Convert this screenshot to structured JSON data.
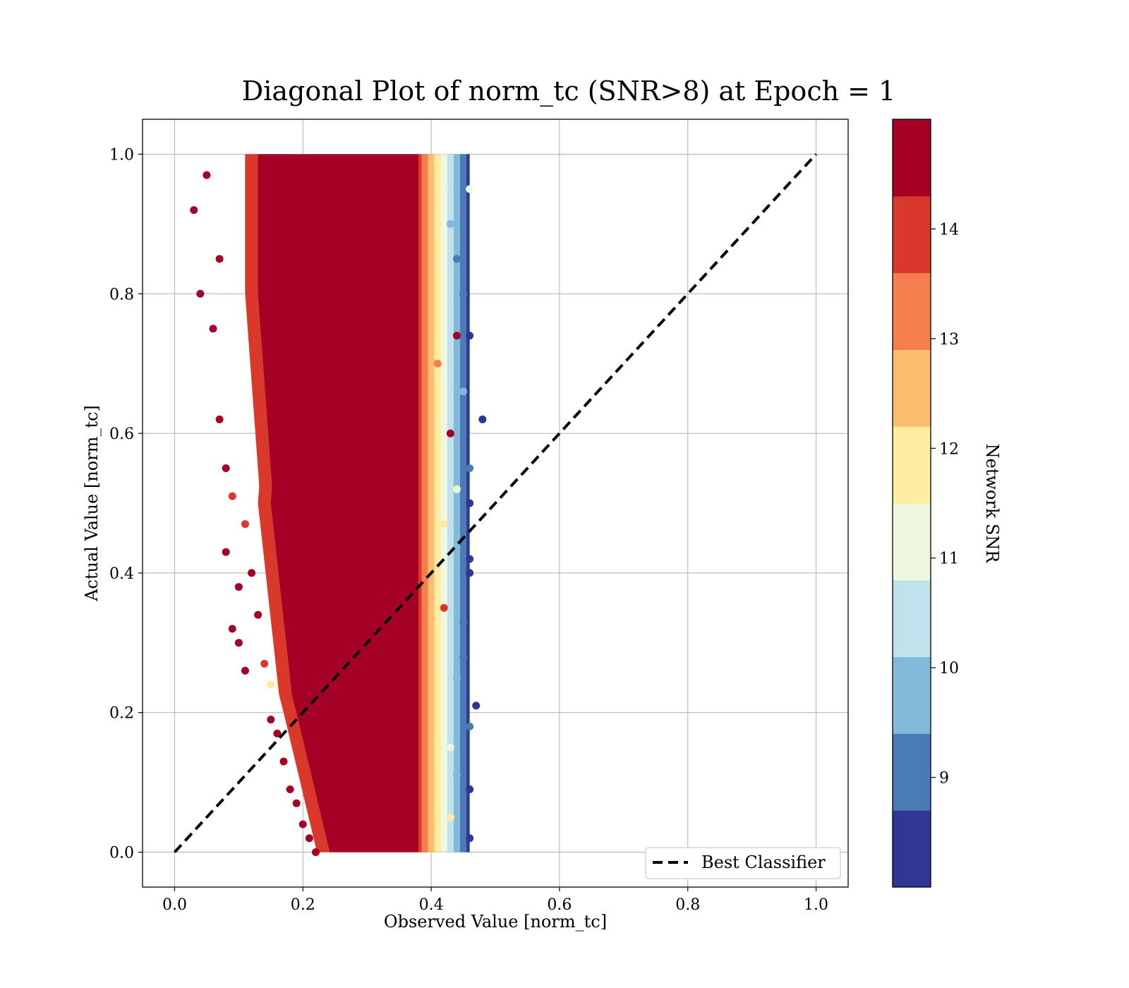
{
  "chart_data": {
    "type": "scatter",
    "title": "Diagonal Plot of norm_tc (SNR>8) at Epoch = 1",
    "xlabel": "Observed Value [norm_tc]",
    "ylabel": "Actual Value [norm_tc]",
    "xlim": [
      -0.05,
      1.05
    ],
    "ylim": [
      -0.05,
      1.05
    ],
    "xticks": [
      "0.0",
      "0.2",
      "0.4",
      "0.6",
      "0.8",
      "1.0"
    ],
    "yticks": [
      "0.0",
      "0.2",
      "0.4",
      "0.6",
      "0.8",
      "1.0"
    ],
    "grid": true,
    "legend": {
      "location": "lower right",
      "entries": [
        {
          "label": "Best Classifier",
          "style": "dashed",
          "color": "#000000"
        }
      ]
    },
    "reference_line": {
      "name": "Best Classifier",
      "x": [
        0.0,
        1.0
      ],
      "y": [
        0.0,
        1.0
      ]
    },
    "colorbar": {
      "label": "Network SNR",
      "range": [
        8,
        15
      ],
      "ticks": [
        "9",
        "10",
        "11",
        "12",
        "13",
        "14"
      ],
      "bins": [
        {
          "from": 8,
          "to": 8.7,
          "color": "#313695"
        },
        {
          "from": 8.7,
          "to": 9.4,
          "color": "#4a7bb7"
        },
        {
          "from": 9.4,
          "to": 10.1,
          "color": "#83b9d9"
        },
        {
          "from": 10.1,
          "to": 10.8,
          "color": "#bfe2ec"
        },
        {
          "from": 10.8,
          "to": 11.5,
          "color": "#edf8df"
        },
        {
          "from": 11.5,
          "to": 12.2,
          "color": "#feeca1"
        },
        {
          "from": 12.2,
          "to": 12.9,
          "color": "#fdbe70"
        },
        {
          "from": 12.9,
          "to": 13.6,
          "color": "#f57e4e"
        },
        {
          "from": 13.6,
          "to": 14.3,
          "color": "#d9382a"
        },
        {
          "from": 14.3,
          "to": 15,
          "color": "#a50026"
        }
      ]
    },
    "series": [
      {
        "name_visible": false,
        "description_values": "scatter points (x=observed, y=actual, snr=color)",
        "points": [
          [
            0.03,
            0.92,
            15
          ],
          [
            0.04,
            0.8,
            15
          ],
          [
            0.05,
            0.97,
            15
          ],
          [
            0.06,
            0.75,
            15
          ],
          [
            0.07,
            0.62,
            15
          ],
          [
            0.07,
            0.85,
            15
          ],
          [
            0.08,
            0.55,
            15
          ],
          [
            0.08,
            0.43,
            15
          ],
          [
            0.09,
            0.51,
            14
          ],
          [
            0.09,
            0.32,
            15
          ],
          [
            0.1,
            0.3,
            15
          ],
          [
            0.1,
            0.38,
            15
          ],
          [
            0.11,
            0.26,
            15
          ],
          [
            0.11,
            0.47,
            14
          ],
          [
            0.12,
            0.4,
            15
          ],
          [
            0.13,
            0.34,
            15
          ],
          [
            0.14,
            0.27,
            14
          ],
          [
            0.15,
            0.24,
            12
          ],
          [
            0.15,
            0.19,
            15
          ],
          [
            0.16,
            0.17,
            15
          ],
          [
            0.17,
            0.13,
            15
          ],
          [
            0.18,
            0.09,
            15
          ],
          [
            0.19,
            0.07,
            15
          ],
          [
            0.2,
            0.04,
            15
          ],
          [
            0.21,
            0.02,
            15
          ],
          [
            0.22,
            0.0,
            15
          ],
          [
            0.41,
            0.99,
            12
          ],
          [
            0.42,
            0.95,
            11
          ],
          [
            0.43,
            0.9,
            10
          ],
          [
            0.44,
            0.85,
            9
          ],
          [
            0.45,
            0.8,
            9
          ],
          [
            0.46,
            0.74,
            8
          ],
          [
            0.48,
            0.62,
            8
          ],
          [
            0.46,
            0.55,
            9
          ],
          [
            0.46,
            0.5,
            8
          ],
          [
            0.46,
            0.42,
            8
          ],
          [
            0.46,
            0.4,
            8
          ],
          [
            0.45,
            0.33,
            9
          ],
          [
            0.47,
            0.21,
            8
          ],
          [
            0.46,
            0.18,
            9
          ],
          [
            0.46,
            0.09,
            8
          ],
          [
            0.46,
            0.02,
            8
          ],
          [
            0.44,
            0.25,
            10
          ],
          [
            0.43,
            0.6,
            15
          ],
          [
            0.44,
            0.74,
            15
          ],
          [
            0.42,
            0.47,
            12
          ],
          [
            0.43,
            0.15,
            11
          ],
          [
            0.41,
            0.7,
            13
          ],
          [
            0.42,
            0.35,
            14
          ],
          [
            0.43,
            0.05,
            12
          ],
          [
            0.45,
            0.66,
            10
          ],
          [
            0.44,
            0.52,
            11
          ],
          [
            0.45,
            0.28,
            9
          ],
          [
            0.44,
            0.11,
            10
          ],
          [
            0.46,
            0.95,
            11
          ]
        ]
      }
    ]
  }
}
